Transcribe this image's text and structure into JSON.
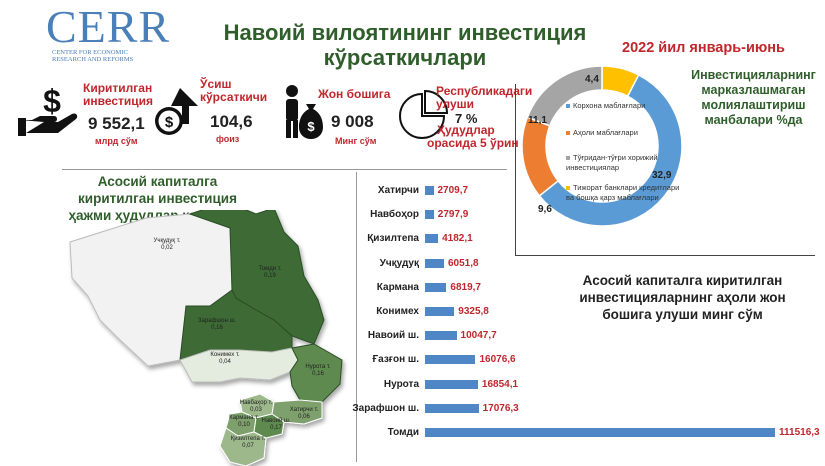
{
  "logo": {
    "text": "CERR",
    "sub": "Center for Economic Research and Reforms"
  },
  "title": {
    "line1": "Навоий вилоятининг инвестиция",
    "line2": "кўрсаткичлари"
  },
  "period": "2022 йил январь-июнь",
  "kpis": {
    "investment": {
      "label1": "Киритилган",
      "label2": "инвестиция",
      "value": "9 552,1",
      "unit": "млрд сўм"
    },
    "growth": {
      "label1": "Ўсиш",
      "label2": "кўрсаткичи",
      "value": "104,6",
      "unit": "фоиз"
    },
    "per_capita": {
      "label": "Жон бошига",
      "value": "9 008",
      "unit": "Минг сўм"
    },
    "share": {
      "label1": "Республикадаги",
      "label2": "улуши",
      "value": "7 %",
      "rank1": "Ҳудудлар",
      "rank2": "орасида 5 ўрин"
    }
  },
  "sources": {
    "title": "Инвестицияларнинг марказлашмаган молиялаштириш манбалари %да",
    "colors": [
      "#5b9bd5",
      "#ed7d31",
      "#a5a5a5",
      "#ffc000"
    ],
    "legend": [
      "Корхона маблағлари",
      "Аҳоли маблағлари",
      "Тўғридан-тўғри хорижий инвестициялар",
      "Тижорат банклари кредитлари ва бошқа қарз маблағлари"
    ],
    "values": [
      "32,9",
      "9,6",
      "11,1",
      "4,4"
    ],
    "numbers": [
      32.9,
      9.6,
      11.1,
      4.4
    ]
  },
  "map": {
    "title": "Асосий капиталга киритилган инвестиция ҳажми ҳудудлар кесимида (% да)",
    "regions": [
      {
        "name": "Учқудуқ т.",
        "value": "0,02"
      },
      {
        "name": "Томди т.",
        "value": "0,19"
      },
      {
        "name": "Зарафшон ш.",
        "value": "0,16"
      },
      {
        "name": "Конимех т.",
        "value": "0,04"
      },
      {
        "name": "Нурота т.",
        "value": "0,16"
      },
      {
        "name": "Навбаҳор т.",
        "value": "0,03"
      },
      {
        "name": "Хатирчи т.",
        "value": "0,06"
      },
      {
        "name": "Кармана т.",
        "value": "0,10"
      },
      {
        "name": "Навоий ш.",
        "value": "0,17"
      },
      {
        "name": "Қизилтепа т.",
        "value": "0,07"
      }
    ]
  },
  "chart_data": {
    "type": "bar",
    "title": "Асосий капиталга киритилган инвестицияларнинг аҳоли жон бошига улуши минг сўм",
    "categories": [
      "Хатирчи",
      "Навбоҳор",
      "Қизилтепа",
      "Учқудуқ",
      "Кармана",
      "Конимех",
      "Навоий ш.",
      "Ғазғон ш.",
      "Нурота",
      "Зарафшон ш.",
      "Томди"
    ],
    "values": [
      2709.7,
      2797.9,
      4182.1,
      6051.8,
      6819.7,
      9325.8,
      10047.7,
      16076.6,
      16854.1,
      17076.3,
      111516.3
    ],
    "value_labels": [
      "2709,7",
      "2797,9",
      "4182,1",
      "6051,8",
      "6819,7",
      "9325,8",
      "10047,7",
      "16076,6",
      "16854,1",
      "17076,3",
      "111516,3"
    ],
    "orientation": "horizontal"
  }
}
